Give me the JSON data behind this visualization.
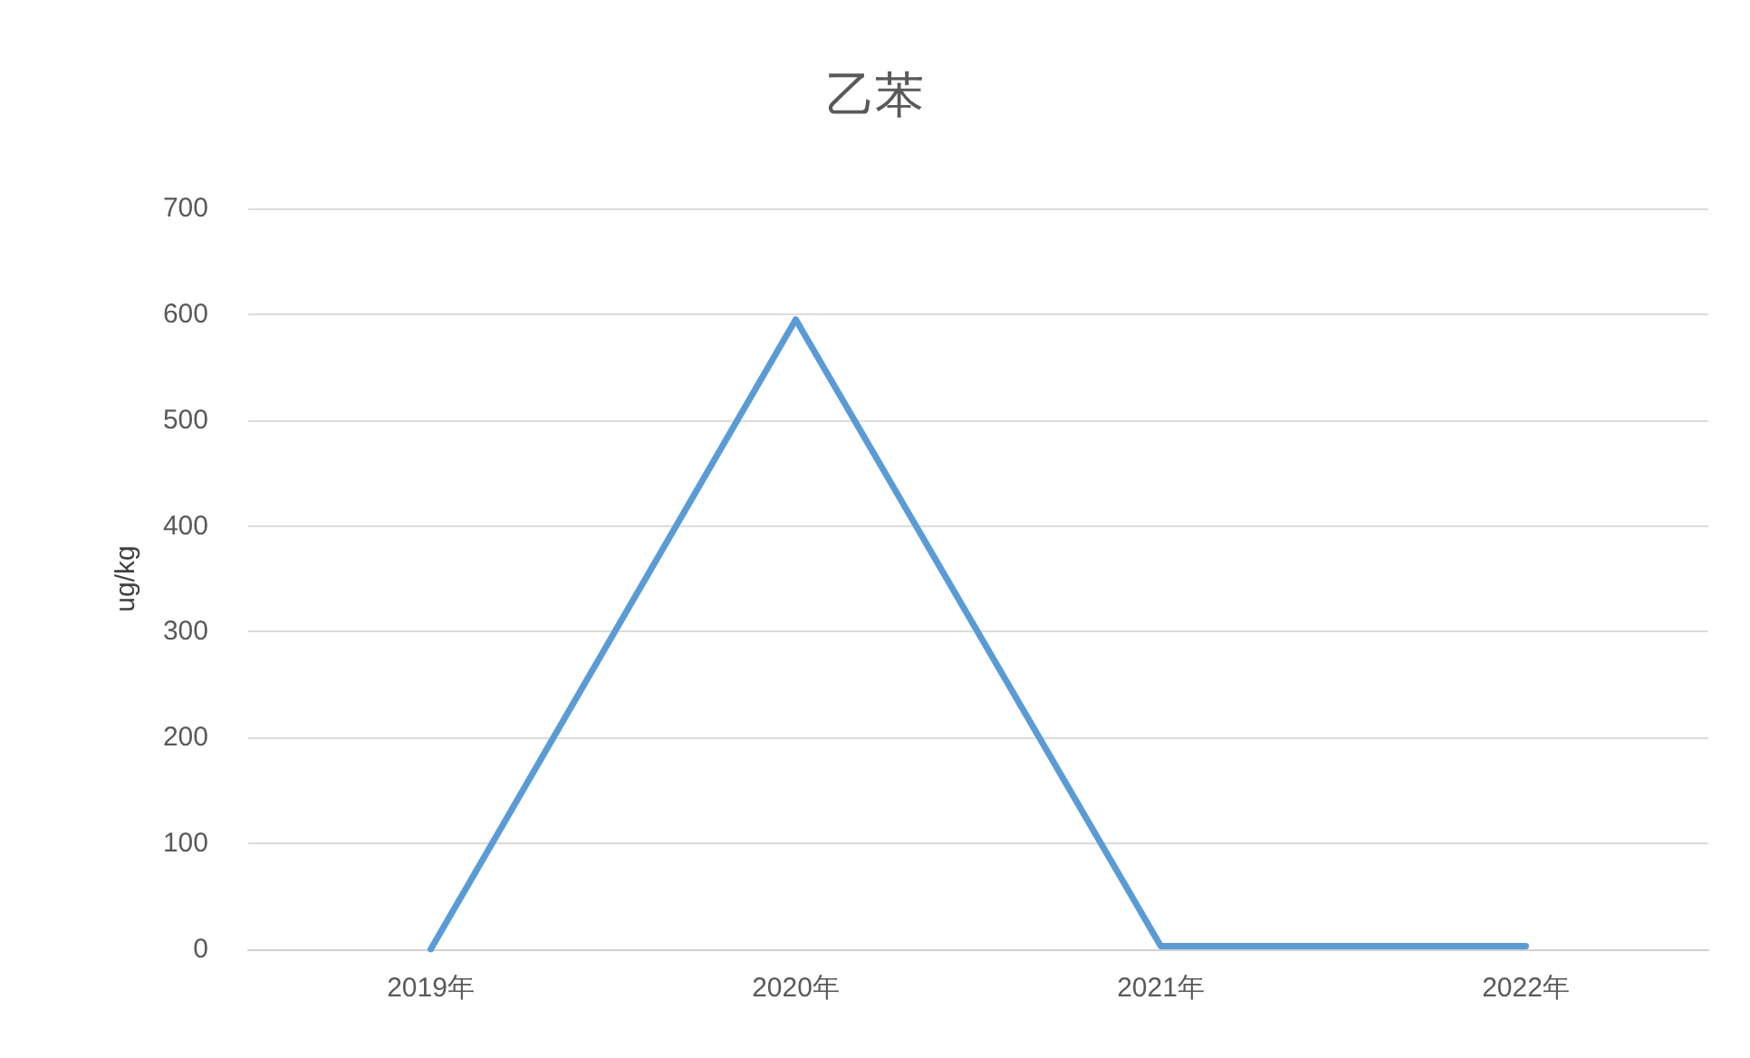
{
  "chart_data": {
    "type": "line",
    "title": "乙苯",
    "ylabel": "ug/kg",
    "categories": [
      "2019年",
      "2020年",
      "2021年",
      "2022年"
    ],
    "series": [
      {
        "color": "#5b9bd5",
        "values": [
          0,
          595,
          3,
          3
        ]
      }
    ],
    "ylim": [
      0,
      700
    ],
    "yticks": [
      0,
      100,
      200,
      300,
      400,
      500,
      600,
      700
    ],
    "grid": "y",
    "marker": "none",
    "line_style": "solid"
  }
}
